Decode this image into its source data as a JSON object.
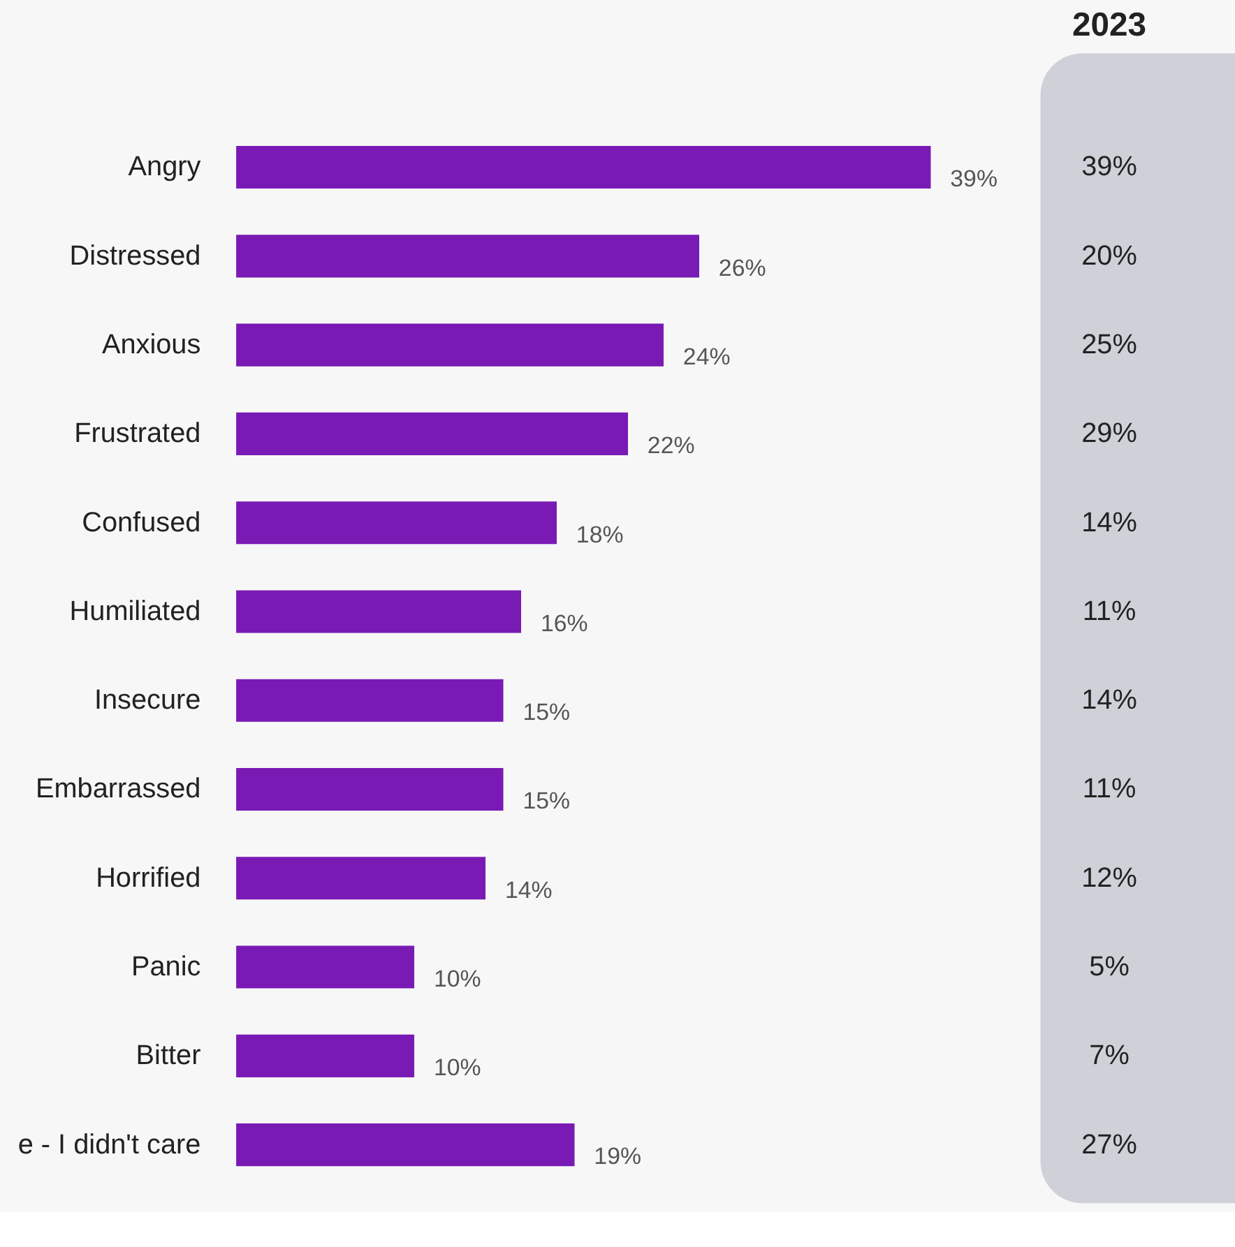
{
  "chart_data": [
    {
      "type": "bar",
      "orientation": "horizontal",
      "categories": [
        "Angry",
        "Distressed",
        "Anxious",
        "Frustrated",
        "Confused",
        "Humiliated",
        "Insecure",
        "Embarrassed",
        "Horrified",
        "Panic",
        "Bitter",
        "e - I didn't care"
      ],
      "values": [
        39,
        26,
        24,
        22,
        18,
        16,
        15,
        15,
        14,
        10,
        10,
        19
      ],
      "value_labels": [
        "39%",
        "26%",
        "24%",
        "22%",
        "18%",
        "16%",
        "15%",
        "15%",
        "14%",
        "10%",
        "10%",
        "19%"
      ],
      "color": "#7a1ab4"
    },
    {
      "type": "other",
      "title": "2023",
      "annotations": [
        "39%",
        "20%",
        "25%",
        "29%",
        "14%",
        "11%",
        "14%",
        "11%",
        "12%",
        "5%",
        "7%",
        "27%"
      ]
    }
  ]
}
